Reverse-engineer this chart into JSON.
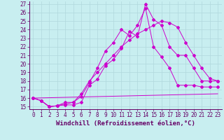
{
  "xlabel": "Windchill (Refroidissement éolien,°C)",
  "background_color": "#c8eef0",
  "grid_color": "#b0d8dc",
  "line_color": "#cc00cc",
  "xlim_min": -0.5,
  "xlim_max": 23.5,
  "ylim_min": 14.7,
  "ylim_max": 27.3,
  "xticks": [
    0,
    1,
    2,
    3,
    4,
    5,
    6,
    7,
    8,
    9,
    10,
    11,
    12,
    13,
    14,
    15,
    16,
    17,
    18,
    19,
    20,
    21,
    22,
    23
  ],
  "yticks": [
    15,
    16,
    17,
    18,
    19,
    20,
    21,
    22,
    23,
    24,
    25,
    26,
    27
  ],
  "line1_x": [
    0,
    1,
    2,
    3,
    4,
    5,
    6,
    7,
    8,
    9,
    10,
    11,
    12,
    13,
    14,
    15,
    16,
    17,
    18,
    19,
    20,
    21,
    22,
    23
  ],
  "line1_y": [
    16.0,
    15.7,
    15.0,
    15.1,
    15.2,
    15.2,
    15.5,
    17.5,
    18.2,
    19.8,
    20.5,
    21.8,
    23.8,
    23.2,
    27.0,
    25.2,
    24.5,
    22.0,
    21.0,
    21.0,
    19.5,
    18.0,
    18.0,
    18.0
  ],
  "line2_x": [
    0,
    1,
    2,
    3,
    4,
    5,
    6,
    7,
    8,
    9,
    10,
    11,
    12,
    13,
    14,
    15,
    16,
    17,
    18,
    19,
    20,
    21,
    22,
    23
  ],
  "line2_y": [
    16.0,
    15.7,
    15.0,
    15.1,
    15.5,
    15.5,
    16.2,
    17.8,
    19.5,
    21.5,
    22.5,
    24.0,
    23.3,
    24.5,
    26.5,
    22.0,
    20.8,
    19.5,
    17.5,
    17.5,
    17.5,
    17.3,
    17.3,
    17.3
  ],
  "line3_x": [
    0,
    1,
    2,
    3,
    4,
    5,
    6,
    7,
    8,
    9,
    10,
    11,
    12,
    13,
    14,
    15,
    16,
    17,
    18,
    19,
    20,
    21,
    22,
    23
  ],
  "line3_y": [
    16.0,
    15.7,
    15.0,
    15.1,
    15.3,
    15.5,
    16.5,
    18.0,
    19.0,
    20.0,
    21.0,
    22.0,
    22.8,
    23.5,
    24.0,
    24.5,
    25.0,
    24.8,
    24.3,
    22.5,
    21.0,
    19.5,
    18.3,
    18.0
  ],
  "line4_x": [
    0,
    23
  ],
  "line4_y": [
    16.0,
    16.5
  ],
  "font_family": "monospace",
  "tick_fontsize": 5.5,
  "label_fontsize": 6.5
}
